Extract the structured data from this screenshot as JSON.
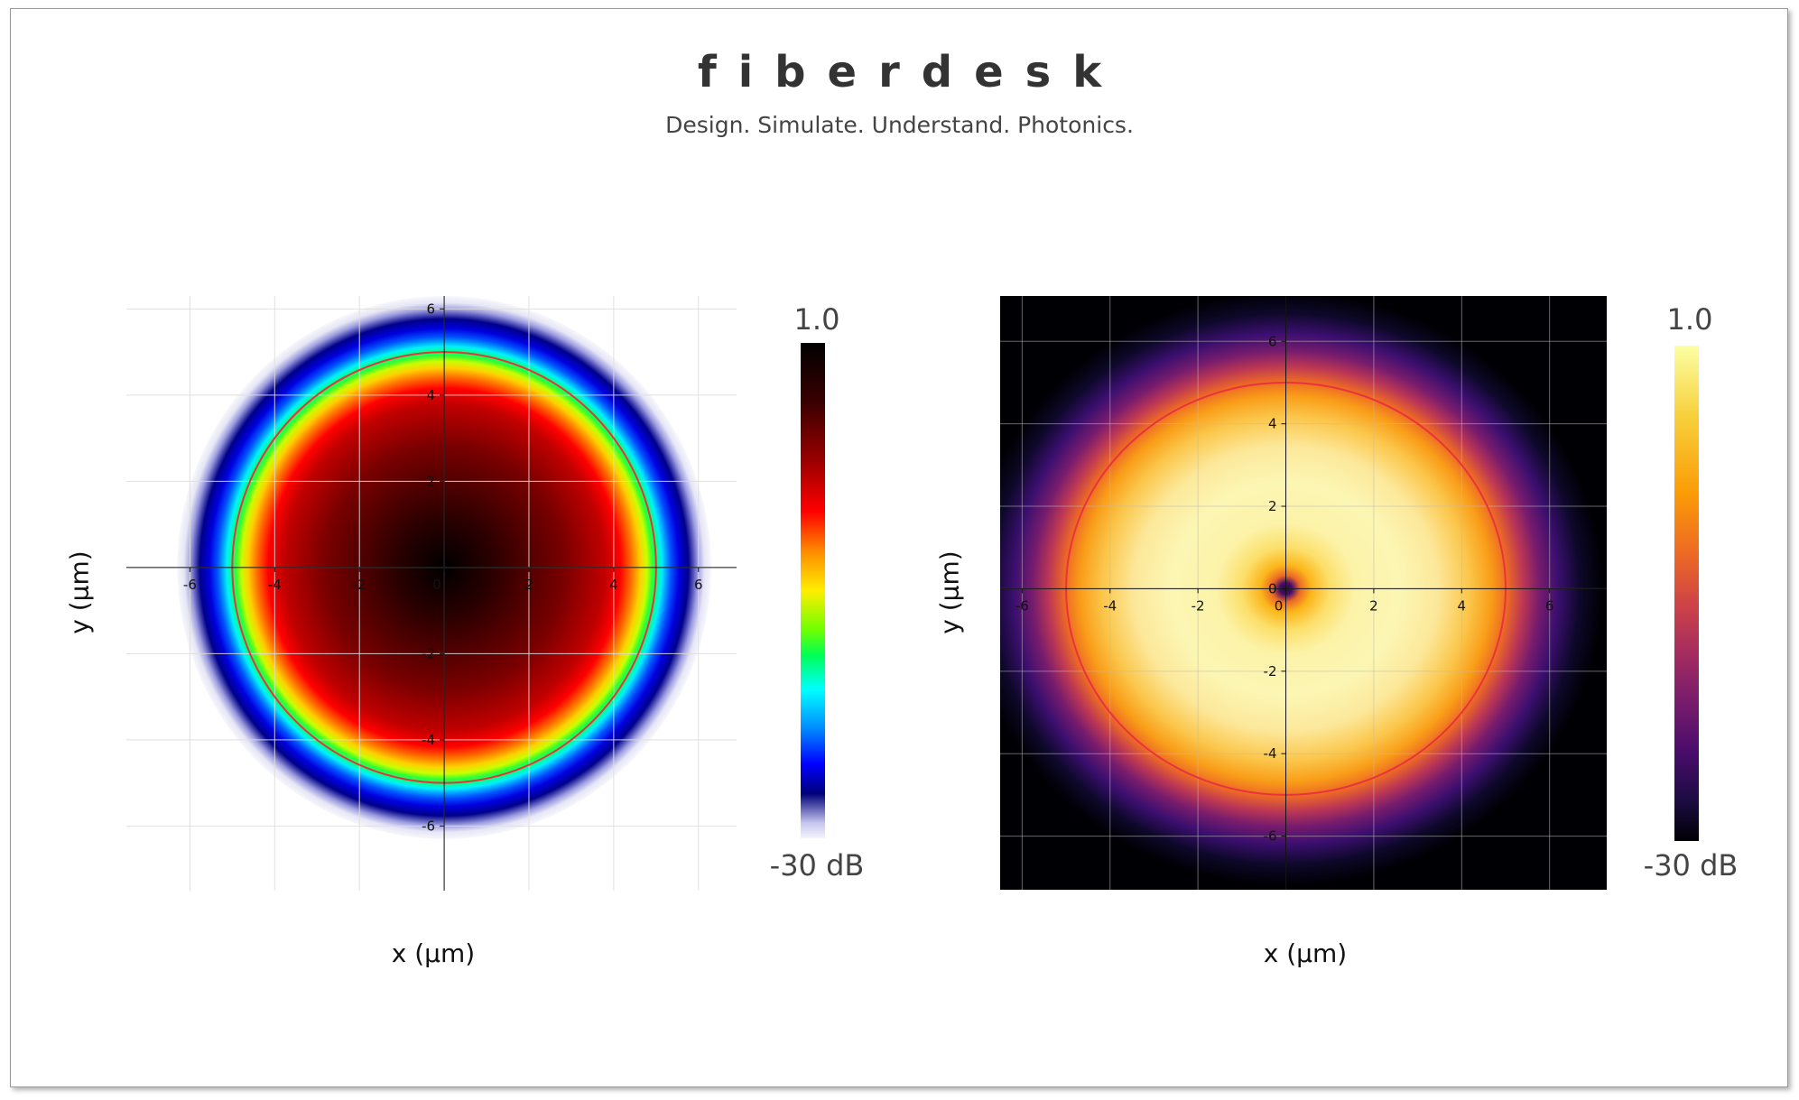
{
  "header": {
    "brand": "fiberdesk",
    "tagline": "Design. Simulate. Understand. Photonics."
  },
  "chart_data": [
    {
      "type": "heatmap",
      "description": "Fundamental-mode field intensity, jet colormap, light background",
      "xlabel": "x (µm)",
      "ylabel": "y (µm)",
      "xlim": [
        -7.5,
        6.9
      ],
      "ylim": [
        -7.5,
        6.3
      ],
      "xticks": [
        -6,
        -4,
        -2,
        0,
        2,
        4,
        6
      ],
      "yticks": [
        -6,
        -4,
        -2,
        0,
        2,
        4,
        6
      ],
      "core_radius": 5,
      "field_extent_radius": 6.3,
      "colorscale": "jet",
      "colorbar": {
        "max_label": "1.0",
        "min_label": "-30 dB"
      },
      "background": "#ffffff",
      "grid": true
    },
    {
      "type": "heatmap",
      "description": "Donut-shaped mode intensity with null at center, inferno colormap, dark background",
      "xlabel": "x (µm)",
      "ylabel": "y (µm)",
      "xlim": [
        -6.5,
        7.3
      ],
      "ylim": [
        -7.3,
        7.1
      ],
      "xticks": [
        -6,
        -4,
        -2,
        0,
        2,
        4,
        6
      ],
      "yticks": [
        -6,
        -4,
        -2,
        0,
        2,
        4,
        6
      ],
      "core_radius": 5,
      "colorscale": "inferno",
      "colorbar": {
        "max_label": "1.0",
        "min_label": "-30 dB"
      },
      "background": "#000004",
      "grid": true
    }
  ],
  "colors": {
    "core_circle": "#e8333d",
    "grid_light": "#dddddd",
    "grid_dark": "#bbbbbb"
  }
}
